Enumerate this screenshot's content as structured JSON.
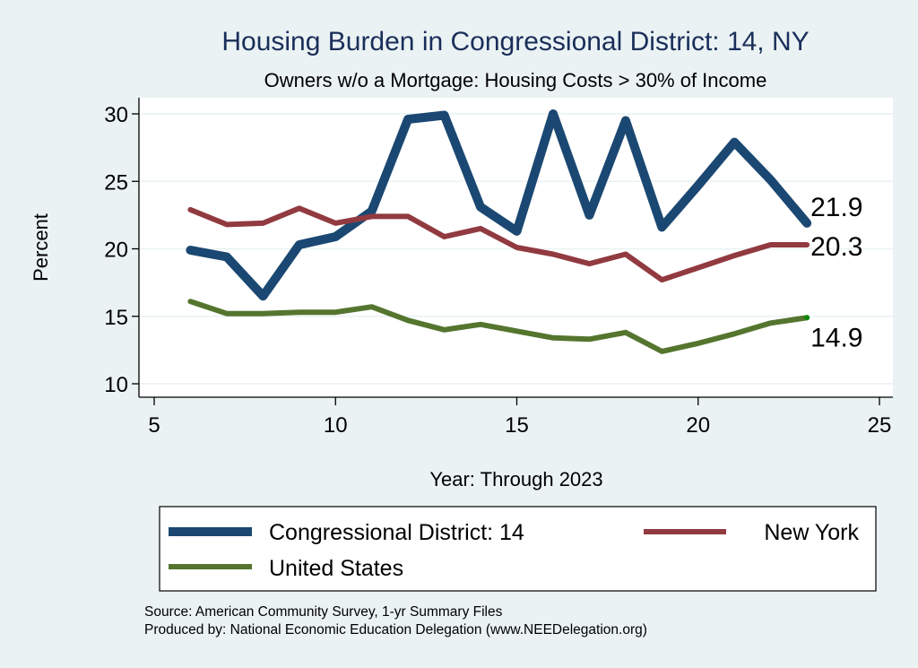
{
  "chart_data": {
    "type": "line",
    "title": "Housing Burden in Congressional District:  14, NY",
    "subtitle": "Owners w/o a Mortgage: Housing Costs > 30% of Income",
    "xlabel": "Year: Through 2023",
    "ylabel": "Percent",
    "xlim": [
      5,
      25
    ],
    "ylim": [
      10,
      30
    ],
    "x_ticks": [
      5,
      10,
      15,
      20,
      25
    ],
    "y_ticks": [
      10,
      15,
      20,
      25,
      30
    ],
    "grid": "horizontal",
    "x": [
      6,
      7,
      8,
      9,
      10,
      11,
      12,
      13,
      14,
      15,
      16,
      17,
      18,
      19,
      20,
      21,
      22,
      23
    ],
    "series": [
      {
        "name": "Congressional District:  14",
        "color": "#1b4872",
        "weight": "thick",
        "values": [
          19.9,
          19.4,
          16.5,
          20.3,
          20.9,
          22.8,
          29.6,
          29.9,
          23.1,
          21.3,
          30.0,
          22.5,
          29.5,
          21.6,
          24.7,
          27.9,
          25.1,
          21.9
        ],
        "end_label": "21.9"
      },
      {
        "name": "New York",
        "color": "#913a40",
        "weight": "medium",
        "values": [
          22.9,
          21.8,
          21.9,
          23.0,
          21.9,
          22.4,
          22.4,
          20.9,
          21.5,
          20.1,
          19.6,
          18.9,
          19.6,
          17.7,
          18.6,
          19.5,
          20.3,
          20.3
        ],
        "end_label": "20.3"
      },
      {
        "name": "United States",
        "color": "#55752f",
        "weight": "medium",
        "values": [
          16.1,
          15.2,
          15.2,
          15.3,
          15.3,
          15.7,
          14.7,
          14.0,
          14.4,
          13.9,
          13.4,
          13.3,
          13.8,
          12.4,
          13.0,
          13.7,
          14.5,
          14.9
        ],
        "end_label": "14.9",
        "end_marker_color": "#0a8a0a"
      }
    ],
    "legend": {
      "placement": "bottom",
      "entries": [
        "Congressional District:  14",
        "New York",
        "United States"
      ]
    },
    "notes": [
      "Source: American Community Survey, 1-yr Summary Files",
      "Produced by: National Economic Education Delegation (www.NEEDelegation.org)"
    ]
  },
  "colors": {
    "background": "#eaf2f3",
    "plot_background": "#ffffff",
    "gridline": "#eaf2f3",
    "title": "#1a2e5a"
  }
}
